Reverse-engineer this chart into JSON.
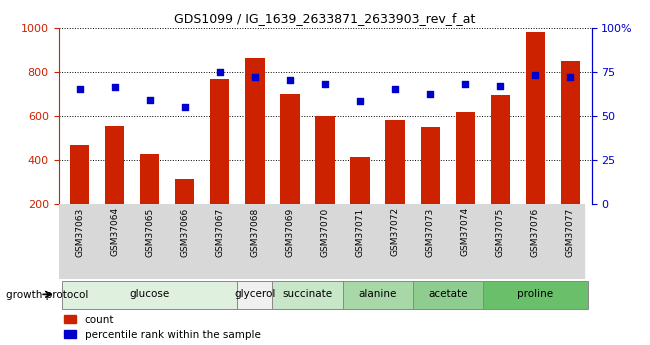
{
  "title": "GDS1099 / IG_1639_2633871_2633903_rev_f_at",
  "samples": [
    "GSM37063",
    "GSM37064",
    "GSM37065",
    "GSM37066",
    "GSM37067",
    "GSM37068",
    "GSM37069",
    "GSM37070",
    "GSM37071",
    "GSM37072",
    "GSM37073",
    "GSM37074",
    "GSM37075",
    "GSM37076",
    "GSM37077"
  ],
  "counts": [
    465,
    553,
    425,
    310,
    765,
    860,
    700,
    600,
    410,
    580,
    548,
    615,
    695,
    980,
    850
  ],
  "percentiles": [
    65,
    66,
    59,
    55,
    75,
    72,
    70,
    68,
    58,
    65,
    62,
    68,
    67,
    73,
    72
  ],
  "groups": [
    {
      "label": "glucose",
      "indices": [
        0,
        1,
        2,
        3,
        4
      ],
      "color": "#dff0df"
    },
    {
      "label": "glycerol",
      "indices": [
        5
      ],
      "color": "#f0f0f0"
    },
    {
      "label": "succinate",
      "indices": [
        6,
        7
      ],
      "color": "#c8e6c8"
    },
    {
      "label": "alanine",
      "indices": [
        8,
        9
      ],
      "color": "#a8d8a8"
    },
    {
      "label": "acetate",
      "indices": [
        10,
        11
      ],
      "color": "#8fcc8f"
    },
    {
      "label": "proline",
      "indices": [
        12,
        13,
        14
      ],
      "color": "#6abf6a"
    }
  ],
  "bar_color": "#cc2200",
  "dot_color": "#0000cc",
  "ylim_left": [
    200,
    1000
  ],
  "ylim_right": [
    0,
    100
  ],
  "yticks_left": [
    200,
    400,
    600,
    800,
    1000
  ],
  "yticks_right": [
    0,
    25,
    50,
    75,
    100
  ],
  "legend_count": "count",
  "legend_pct": "percentile rank within the sample",
  "growth_label": "growth protocol",
  "xtick_bg": "#d8d8d8"
}
